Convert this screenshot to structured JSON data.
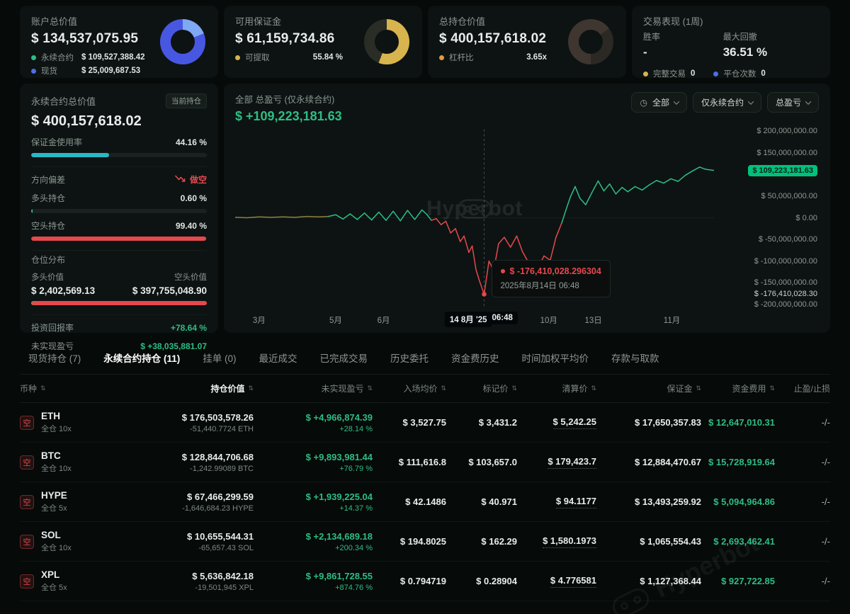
{
  "theme": {
    "green": "#2ebd85",
    "red": "#e5484d",
    "teal": "#2ab8c5",
    "blue": "#4857e2",
    "light_blue": "#7fa8f5",
    "yellow": "#d8b44e",
    "chip_green": "#00c17c"
  },
  "cards": {
    "account": {
      "title": "账户总价值",
      "value": "$ 134,537,075.95",
      "items": [
        {
          "label": "永续合约",
          "value": "$ 109,527,388.42"
        },
        {
          "label": "现货",
          "value": "$ 25,009,687.53"
        }
      ]
    },
    "margin": {
      "title": "可用保证金",
      "value": "$ 61,159,734.86",
      "item_label": "可提取",
      "item_value": "55.84 %",
      "withdrawable_pct": 55.84
    },
    "position": {
      "title": "总持仓价值",
      "value": "$ 400,157,618.02",
      "item_label": "杠杆比",
      "item_value": "3.65x"
    },
    "performance": {
      "title": "交易表现 (1周)",
      "win_rate_label": "胜率",
      "win_rate_value": "-",
      "drawdown_label": "最大回撤",
      "drawdown_value": "36.51 %",
      "trades_label": "完整交易",
      "trades_value": "0",
      "closes_label": "平仓次数",
      "closes_value": "0"
    }
  },
  "perp_panel": {
    "title": "永续合约总价值",
    "badge": "当前持仓",
    "value": "$ 400,157,618.02",
    "margin_usage_label": "保证金使用率",
    "margin_usage_value": "44.16 %",
    "margin_usage_pct": 44.16,
    "direction_label": "方向偏差",
    "direction_value": "做空",
    "long_label": "多头持仓",
    "long_value": "0.60 %",
    "long_pct": 0.6,
    "short_label": "空头持仓",
    "short_value": "99.40 %",
    "short_pct": 99.4,
    "dist_label": "仓位分布",
    "long_value_label": "多头价值",
    "long_value_amount": "$ 2,402,569.13",
    "short_value_label": "空头价值",
    "short_value_amount": "$ 397,755,048.90",
    "roi_label": "投资回报率",
    "roi_value": "+78.64 %",
    "upnl_label": "未实现盈亏",
    "upnl_value": "$ +38,035,881.07"
  },
  "chart_data": {
    "type": "line",
    "title": "全部 总盈亏 (仅永续合约)",
    "value": "$ +109,223,181.63",
    "filters": [
      "全部",
      "仅永续合约",
      "总盈亏"
    ],
    "watermark": "Hyperbot",
    "tooltip_value": "$ -176,410,028.296304",
    "tooltip_date": "2025年8月14日 06:48",
    "flat_until": 0.195,
    "crosshair_f": 0.52,
    "min_point": {
      "f": 0.52,
      "v": -176.41
    },
    "ylim_musd": [
      -210,
      210
    ],
    "y_axis": [
      {
        "text": "$ 200,000,000.00",
        "v": 200
      },
      {
        "text": "$ 150,000,000.00",
        "v": 150
      },
      {
        "text": "$ 109,223,181.63",
        "v": 109.22,
        "type": "current"
      },
      {
        "text": "$ 50,000,000.00",
        "v": 50
      },
      {
        "text": "$ 0.00",
        "v": 0
      },
      {
        "text": "$ -50,000,000.00",
        "v": -50
      },
      {
        "text": "$ -100,000,000.00",
        "v": -100
      },
      {
        "text": "$ -150,000,000.00",
        "v": -150
      },
      {
        "text": "$ -176,410,028.30",
        "v": -176.41,
        "type": "min"
      },
      {
        "text": "$ -200,000,000.00",
        "v": -200
      }
    ],
    "x_axis": [
      {
        "text": "3月",
        "f": 0.05
      },
      {
        "text": "5月",
        "f": 0.21
      },
      {
        "text": "6月",
        "f": 0.31
      },
      {
        "text": "14 8月 '25",
        "f": 0.487,
        "type": "chip"
      },
      {
        "text": "06:48",
        "f": 0.558,
        "type": "chip"
      },
      {
        "text": "10月",
        "f": 0.655
      },
      {
        "text": "13日",
        "f": 0.748
      },
      {
        "text": "11月",
        "f": 0.912
      }
    ],
    "points_musd": [
      [
        0,
        1
      ],
      [
        0.025,
        0
      ],
      [
        0.05,
        2
      ],
      [
        0.075,
        1
      ],
      [
        0.1,
        2
      ],
      [
        0.125,
        1
      ],
      [
        0.15,
        3
      ],
      [
        0.175,
        2
      ],
      [
        0.195,
        3
      ],
      [
        0.21,
        7
      ],
      [
        0.225,
        -3
      ],
      [
        0.24,
        9
      ],
      [
        0.255,
        -4
      ],
      [
        0.27,
        11
      ],
      [
        0.285,
        -5
      ],
      [
        0.3,
        13
      ],
      [
        0.315,
        -6
      ],
      [
        0.33,
        15
      ],
      [
        0.345,
        -7
      ],
      [
        0.36,
        17
      ],
      [
        0.375,
        -4
      ],
      [
        0.39,
        18
      ],
      [
        0.4,
        8
      ],
      [
        0.41,
        -6
      ],
      [
        0.42,
        -2
      ],
      [
        0.43,
        -16
      ],
      [
        0.44,
        -8
      ],
      [
        0.45,
        -35
      ],
      [
        0.46,
        -25
      ],
      [
        0.47,
        -55
      ],
      [
        0.478,
        -42
      ],
      [
        0.488,
        -80
      ],
      [
        0.495,
        -65
      ],
      [
        0.503,
        -120
      ],
      [
        0.51,
        -145
      ],
      [
        0.52,
        -176.41
      ],
      [
        0.53,
        -100
      ],
      [
        0.54,
        -122
      ],
      [
        0.55,
        -60
      ],
      [
        0.562,
        -45
      ],
      [
        0.575,
        -68
      ],
      [
        0.588,
        -42
      ],
      [
        0.6,
        -78
      ],
      [
        0.615,
        -108
      ],
      [
        0.63,
        -120
      ],
      [
        0.645,
        -88
      ],
      [
        0.658,
        -98
      ],
      [
        0.67,
        -45
      ],
      [
        0.682,
        -12
      ],
      [
        0.692,
        22
      ],
      [
        0.7,
        48
      ],
      [
        0.71,
        72
      ],
      [
        0.72,
        45
      ],
      [
        0.732,
        30
      ],
      [
        0.745,
        58
      ],
      [
        0.758,
        85
      ],
      [
        0.77,
        62
      ],
      [
        0.782,
        78
      ],
      [
        0.795,
        55
      ],
      [
        0.808,
        70
      ],
      [
        0.82,
        60
      ],
      [
        0.835,
        72
      ],
      [
        0.85,
        64
      ],
      [
        0.865,
        76
      ],
      [
        0.88,
        86
      ],
      [
        0.895,
        80
      ],
      [
        0.91,
        90
      ],
      [
        0.925,
        84
      ],
      [
        0.94,
        98
      ],
      [
        0.955,
        108
      ],
      [
        0.97,
        117
      ],
      [
        0.982,
        112
      ],
      [
        1,
        109.22
      ]
    ]
  },
  "tabs": {
    "active_index": 1,
    "items": [
      {
        "label": "现货持仓 (7)"
      },
      {
        "label": "永续合约持仓 (11)"
      },
      {
        "label": "挂单 (0)"
      },
      {
        "label": "最近成交"
      },
      {
        "label": "已完成交易"
      },
      {
        "label": "历史委托"
      },
      {
        "label": "资金费历史"
      },
      {
        "label": "时间加权平均价"
      },
      {
        "label": "存款与取款"
      }
    ]
  },
  "table": {
    "headers": [
      {
        "label": "币种",
        "sortable": true
      },
      {
        "label": "持仓价值",
        "sortable": true,
        "active": true
      },
      {
        "label": "未实现盈亏",
        "sortable": true
      },
      {
        "label": "入场均价",
        "sortable": true
      },
      {
        "label": "标记价",
        "sortable": true
      },
      {
        "label": "清算价",
        "sortable": true
      },
      {
        "label": "保证金",
        "sortable": true
      },
      {
        "label": "资金费用",
        "sortable": true
      },
      {
        "label": "止盈/止损",
        "sortable": false
      }
    ],
    "rows": [
      {
        "side": "空",
        "coin": "ETH",
        "mode": "全仓 10x",
        "value": "$ 176,503,578.26",
        "amount": "-51,440.7724 ETH",
        "pnl": "$ +4,966,874.39",
        "pnl_pct": "+28.14 %",
        "entry": "$ 3,527.75",
        "mark": "$ 3,431.2",
        "liq": "$ 5,242.25",
        "margin": "$ 17,650,357.83",
        "funding": "$ 12,647,010.31",
        "tpsl": "-/-"
      },
      {
        "side": "空",
        "coin": "BTC",
        "mode": "全仓 10x",
        "value": "$ 128,844,706.68",
        "amount": "-1,242.99089 BTC",
        "pnl": "$ +9,893,981.44",
        "pnl_pct": "+76.79 %",
        "entry": "$ 111,616.8",
        "mark": "$ 103,657.0",
        "liq": "$ 179,423.7",
        "margin": "$ 12,884,470.67",
        "funding": "$ 15,728,919.64",
        "tpsl": "-/-"
      },
      {
        "side": "空",
        "coin": "HYPE",
        "mode": "全仓 5x",
        "value": "$ 67,466,299.59",
        "amount": "-1,646,684.23 HYPE",
        "pnl": "$ +1,939,225.04",
        "pnl_pct": "+14.37 %",
        "entry": "$ 42.1486",
        "mark": "$ 40.971",
        "liq": "$ 94.1177",
        "margin": "$ 13,493,259.92",
        "funding": "$ 5,094,964.86",
        "tpsl": "-/-"
      },
      {
        "side": "空",
        "coin": "SOL",
        "mode": "全仓 10x",
        "value": "$ 10,655,544.31",
        "amount": "-65,657.43 SOL",
        "pnl": "$ +2,134,689.18",
        "pnl_pct": "+200.34 %",
        "entry": "$ 194.8025",
        "mark": "$ 162.29",
        "liq": "$ 1,580.1973",
        "margin": "$ 1,065,554.43",
        "funding": "$ 2,693,462.41",
        "tpsl": "-/-"
      },
      {
        "side": "空",
        "coin": "XPL",
        "mode": "全仓 5x",
        "value": "$ 5,636,842.18",
        "amount": "-19,501,945 XPL",
        "pnl": "$ +9,861,728.55",
        "pnl_pct": "+874.76 %",
        "entry": "$ 0.794719",
        "mark": "$ 0.28904",
        "liq": "$ 4.776581",
        "margin": "$ 1,127,368.44",
        "funding": "$ 927,722.85",
        "tpsl": "-/-"
      }
    ]
  },
  "watermark": "Hyperbot"
}
